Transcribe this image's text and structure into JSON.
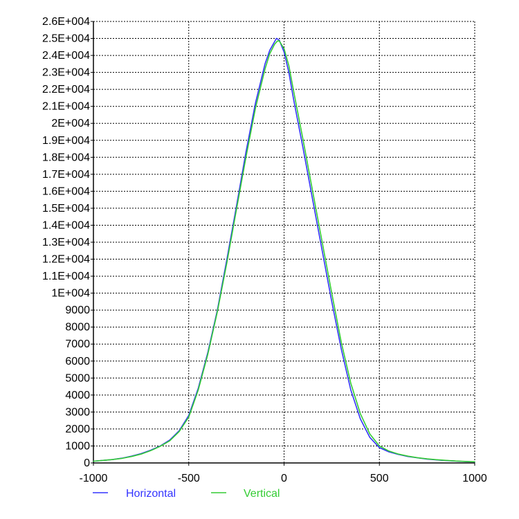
{
  "colors": {
    "background": "#ffffff",
    "axis": "#000000",
    "grid": "#000000",
    "horizontal": "#3333ff",
    "vertical": "#33cc33"
  },
  "chart_data": {
    "type": "line",
    "title": "",
    "xlabel": "",
    "ylabel": "",
    "xlim": [
      -1000,
      1000
    ],
    "ylim": [
      0,
      26000
    ],
    "grid": true,
    "legend_position": "bottom-left",
    "x_ticks": [
      -1000,
      -500,
      0,
      500,
      1000
    ],
    "x_tick_labels": [
      "-1000",
      "-500",
      "0",
      "500",
      "1000"
    ],
    "y_ticks": [
      0,
      1000,
      2000,
      3000,
      4000,
      5000,
      6000,
      7000,
      8000,
      9000,
      10000,
      11000,
      12000,
      13000,
      14000,
      15000,
      16000,
      17000,
      18000,
      19000,
      20000,
      21000,
      22000,
      23000,
      24000,
      25000,
      26000
    ],
    "y_tick_labels": [
      "0",
      "1000",
      "2000",
      "3000",
      "4000",
      "5000",
      "6000",
      "7000",
      "8000",
      "9000",
      "1E+004",
      "1.1E+004",
      "1.2E+004",
      "1.3E+004",
      "1.4E+004",
      "1.5E+004",
      "1.6E+004",
      "1.7E+004",
      "1.8E+004",
      "1.9E+004",
      "2E+004",
      "2.1E+004",
      "2.2E+004",
      "2.3E+004",
      "2.4E+004",
      "2.5E+004",
      "2.6E+004"
    ],
    "series": [
      {
        "name": "Horizontal",
        "color": "#3333ff",
        "x": [
          -1000,
          -950,
          -900,
          -850,
          -800,
          -750,
          -700,
          -650,
          -600,
          -550,
          -500,
          -450,
          -400,
          -350,
          -300,
          -250,
          -200,
          -150,
          -100,
          -75,
          -50,
          -40,
          -25,
          0,
          25,
          50,
          100,
          150,
          200,
          250,
          300,
          350,
          400,
          450,
          500,
          550,
          600,
          650,
          700,
          750,
          800,
          850,
          900,
          950,
          1000
        ],
        "y": [
          100,
          150,
          200,
          280,
          400,
          550,
          750,
          1000,
          1350,
          1900,
          2800,
          4400,
          6500,
          9000,
          12000,
          15100,
          18300,
          21200,
          23500,
          24300,
          24800,
          25000,
          24900,
          24200,
          23000,
          21400,
          18500,
          15500,
          12500,
          9500,
          6700,
          4300,
          2600,
          1500,
          900,
          650,
          500,
          380,
          300,
          230,
          180,
          140,
          110,
          80,
          60
        ]
      },
      {
        "name": "Vertical",
        "color": "#33cc33",
        "x": [
          -1000,
          -950,
          -900,
          -850,
          -800,
          -750,
          -700,
          -650,
          -600,
          -550,
          -500,
          -450,
          -400,
          -350,
          -300,
          -250,
          -200,
          -150,
          -100,
          -75,
          -50,
          -35,
          -25,
          0,
          25,
          50,
          100,
          150,
          200,
          250,
          300,
          350,
          400,
          450,
          500,
          550,
          600,
          650,
          700,
          750,
          800,
          850,
          900,
          950,
          1000
        ],
        "y": [
          100,
          150,
          200,
          270,
          380,
          520,
          720,
          980,
          1300,
          1850,
          2700,
          4300,
          6400,
          8900,
          11800,
          14900,
          18000,
          20900,
          23200,
          24100,
          24650,
          24850,
          24850,
          24400,
          23400,
          21900,
          19000,
          16000,
          13000,
          10000,
          7100,
          4700,
          2900,
          1700,
          1000,
          700,
          520,
          400,
          310,
          240,
          190,
          150,
          115,
          90,
          70
        ]
      }
    ]
  }
}
